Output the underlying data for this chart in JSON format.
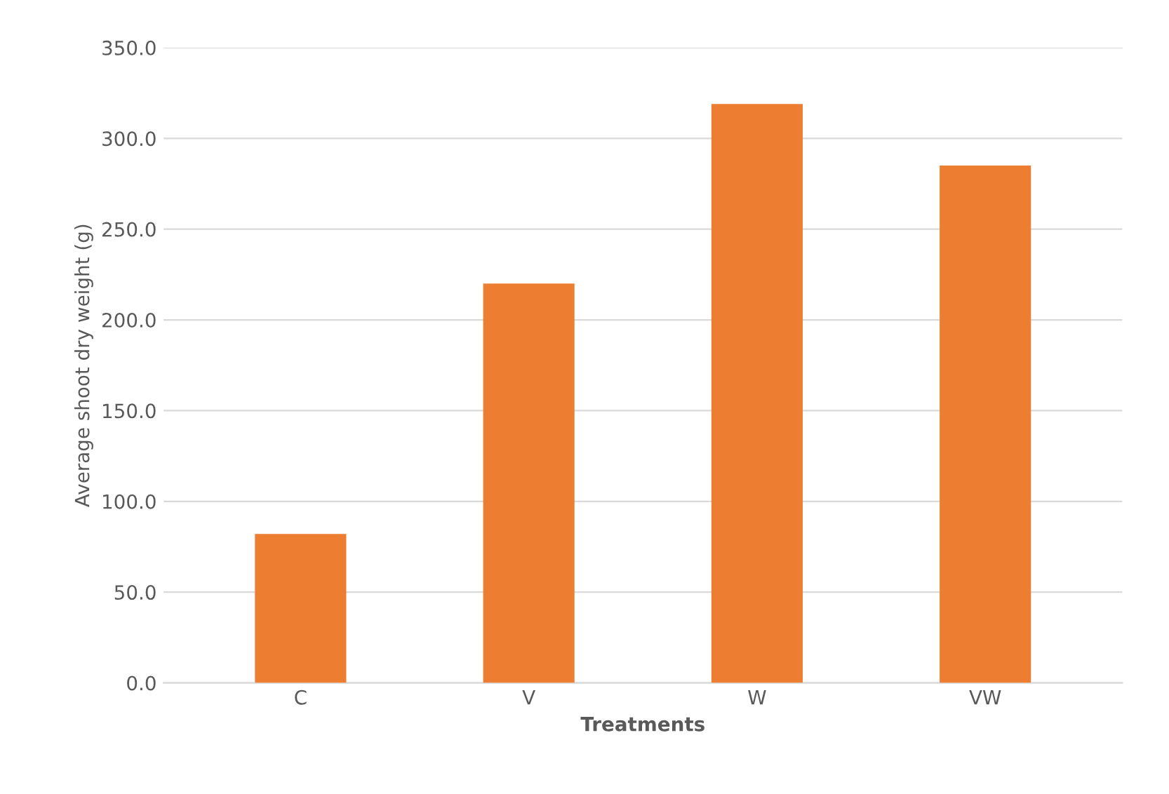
{
  "chart_data": {
    "type": "bar",
    "xlabel": "Treatments",
    "ylabel": "Average shoot dry weight (g)",
    "categories": [
      "C",
      "V",
      "W",
      "VW"
    ],
    "values": [
      82,
      220,
      319,
      285
    ],
    "color": "#ed7d31",
    "ylim": [
      0,
      350
    ],
    "yticks": [
      {
        "value": 0,
        "label": "0.0"
      },
      {
        "value": 50,
        "label": "50.0"
      },
      {
        "value": 100,
        "label": "100.0"
      },
      {
        "value": 150,
        "label": "150.0"
      },
      {
        "value": 200,
        "label": "200.0"
      },
      {
        "value": 250,
        "label": "250.0"
      },
      {
        "value": 300,
        "label": "300.0"
      },
      {
        "value": 350,
        "label": "350.0"
      }
    ],
    "grid": "y"
  }
}
